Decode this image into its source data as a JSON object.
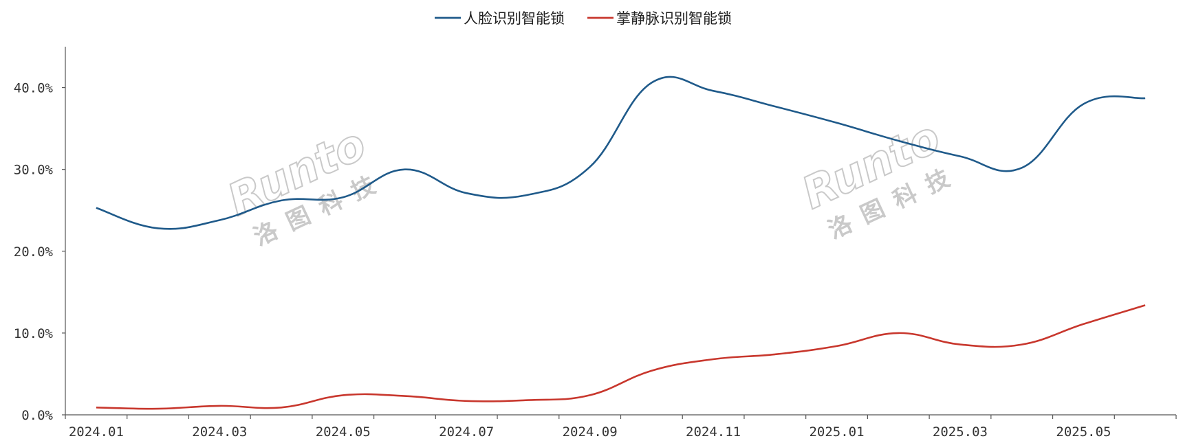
{
  "chart_data": {
    "type": "line",
    "title": "",
    "xlabel": "",
    "ylabel": "",
    "ylim": [
      0,
      45
    ],
    "yticks": [
      0,
      10,
      20,
      30,
      40
    ],
    "ytick_labels": [
      "0.0%",
      "10.0%",
      "20.0%",
      "30.0%",
      "40.0%"
    ],
    "categories": [
      "2024.01",
      "2024.02",
      "2024.03",
      "2024.04",
      "2024.05",
      "2024.06",
      "2024.07",
      "2024.08",
      "2024.09",
      "2024.10",
      "2024.11",
      "2024.12",
      "2025.01",
      "2025.02",
      "2025.03",
      "2025.04",
      "2025.05",
      "2025.06"
    ],
    "xtick_labels": [
      "2024.01",
      "2024.03",
      "2024.05",
      "2024.07",
      "2024.09",
      "2024.11",
      "2025.01",
      "2025.03",
      "2025.05"
    ],
    "series": [
      {
        "name": "人脸识别智能锁",
        "color": "#1f5a8a",
        "values": [
          25.3,
          22.8,
          23.8,
          26.2,
          26.6,
          30.0,
          27.1,
          26.9,
          30.3,
          40.6,
          39.6,
          37.7,
          35.7,
          33.5,
          31.6,
          30.2,
          38.0,
          38.7
        ]
      },
      {
        "name": "掌静脉识别智能锁",
        "color": "#c8372d",
        "values": [
          0.9,
          0.75,
          1.1,
          0.9,
          2.4,
          2.3,
          1.7,
          1.8,
          2.4,
          5.4,
          6.8,
          7.4,
          8.4,
          10.0,
          8.6,
          8.6,
          11.1,
          13.4
        ]
      }
    ],
    "legend": "top-center",
    "grid": false
  },
  "watermark": {
    "latin": "Runto",
    "chinese": "洛图科技"
  }
}
